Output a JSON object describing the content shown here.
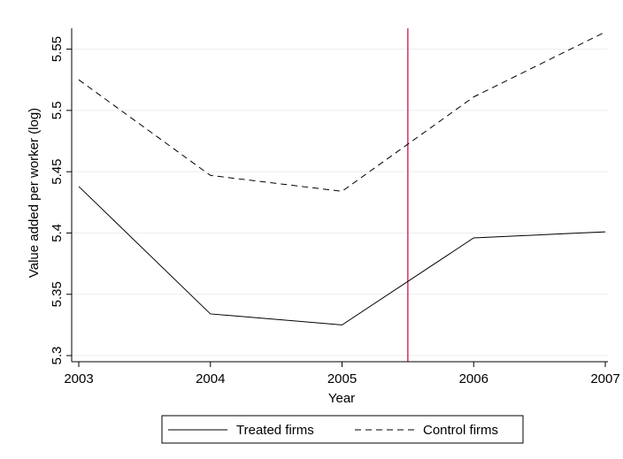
{
  "chart_data": {
    "type": "line",
    "title": "",
    "xlabel": "Year",
    "ylabel": "Value added per worker (log)",
    "x": [
      2003,
      2004,
      2005,
      2006,
      2007
    ],
    "x_tick_labels": [
      "2003",
      "2004",
      "2005",
      "2006",
      "2007"
    ],
    "xlim": [
      2003,
      2007
    ],
    "ylim": [
      5.295,
      5.567
    ],
    "y_ticks": [
      5.3,
      5.35,
      5.4,
      5.45,
      5.5,
      5.55
    ],
    "y_tick_labels": [
      "5.3",
      "5.35",
      "5.4",
      "5.45",
      "5.5",
      "5.55"
    ],
    "grid": true,
    "legend_position": "bottom",
    "series": [
      {
        "name": "Treated firms",
        "style": "solid",
        "color": "#000000",
        "values": [
          5.438,
          5.334,
          5.325,
          5.396,
          5.401
        ]
      },
      {
        "name": "Control firms",
        "style": "dashed",
        "color": "#000000",
        "values": [
          5.525,
          5.447,
          5.434,
          5.511,
          5.564
        ]
      }
    ],
    "vertical_line": {
      "x": 2005.5,
      "color": "#cc0033"
    }
  }
}
